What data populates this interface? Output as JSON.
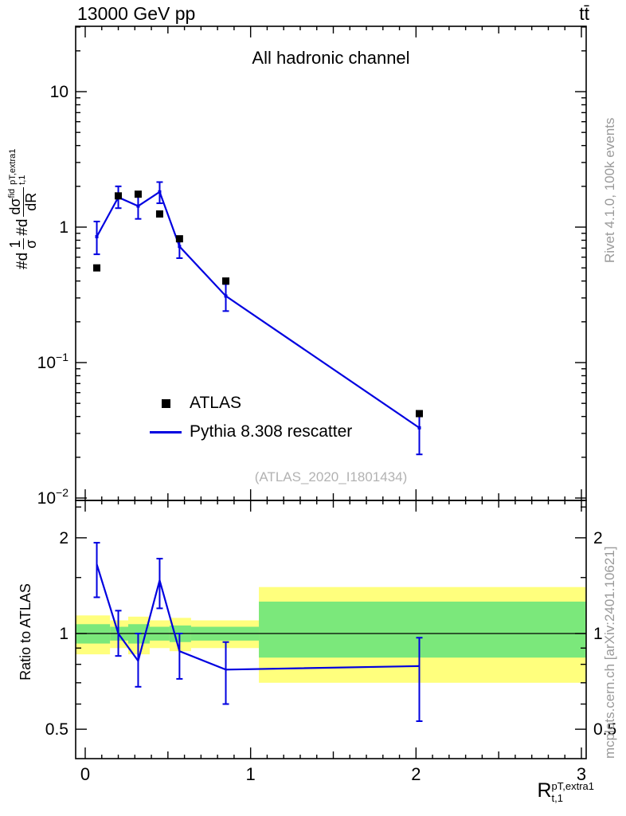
{
  "header": {
    "left": "13000 GeV pp",
    "right": "tt̄"
  },
  "top_panel": {
    "title": "All hadronic channel",
    "watermark": "(ATLAS_2020_I1801434)"
  },
  "legend": [
    {
      "label": "ATLAS",
      "marker": "square",
      "color": "#000000"
    },
    {
      "label": "Pythia 8.308 rescatter",
      "marker": "line",
      "color": "#0000e0"
    }
  ],
  "side_labels": {
    "rivet": "Rivet 4.1.0, 100k events",
    "mcplots": "mcplots.cern.ch [arXiv:2401.10621]"
  },
  "axis_labels": {
    "ratio_y": "Ratio to ATLAS",
    "x_base": "R",
    "x_sup": "pT,extra1",
    "x_sub": "t,1",
    "y_h1": "#d",
    "y_f1_num": "1",
    "y_f1_den": "σ",
    "y_h2": "#d",
    "y_f2_num": "dσ",
    "y_f2_num_sup": "fid",
    "y_f2_den": "dR",
    "y_sup": "pT,extra1",
    "y_sub": "t,1"
  },
  "colors": {
    "pythia": "#0000e0",
    "atlas": "#000000",
    "band_yellow": "#ffff7d",
    "band_green": "#7be87b",
    "frame": "#000000",
    "gray_text": "#9a9a9a"
  },
  "chart_data": {
    "type": "line",
    "title": "All hadronic channel",
    "xlabel": "R_{t,1}^{pT,extra1}",
    "xlim": [
      0,
      3
    ],
    "xticks": [
      0,
      1,
      2,
      3
    ],
    "top": {
      "yscale": "log",
      "ylim": [
        0.0096,
        30
      ],
      "ytick_exponents": [
        1,
        0,
        -1,
        -2
      ],
      "series": [
        {
          "name": "ATLAS",
          "type": "points",
          "marker": "filled-square",
          "color": "#000000",
          "x": [
            0.07,
            0.2,
            0.32,
            0.45,
            0.57,
            0.85,
            2.02
          ],
          "y": [
            0.5,
            1.7,
            1.75,
            1.25,
            0.82,
            0.4,
            0.042
          ]
        },
        {
          "name": "Pythia 8.308 rescatter",
          "type": "line+errorbars",
          "color": "#0000e0",
          "x": [
            0.07,
            0.2,
            0.32,
            0.45,
            0.57,
            0.85,
            2.02
          ],
          "y": [
            0.85,
            1.66,
            1.43,
            1.82,
            0.72,
            0.31,
            0.033
          ],
          "y_lo": [
            0.63,
            1.38,
            1.15,
            1.5,
            0.59,
            0.24,
            0.021
          ],
          "y_hi": [
            1.1,
            2.0,
            1.75,
            2.15,
            0.85,
            0.38,
            0.042
          ]
        }
      ]
    },
    "ratio": {
      "ylabel": "Ratio to ATLAS",
      "yscale": "log",
      "ylim": [
        0.404,
        2.62
      ],
      "yticks": [
        0.5,
        1,
        2
      ],
      "minor_yticks": [
        0.6,
        0.7,
        0.8,
        0.9,
        1.5,
        2.5
      ],
      "reference_line": 1,
      "line": {
        "x": [
          0.07,
          0.2,
          0.32,
          0.45,
          0.57,
          0.85,
          2.02
        ],
        "y": [
          1.65,
          1.0,
          0.82,
          1.47,
          0.88,
          0.77,
          0.79
        ],
        "y_lo": [
          1.3,
          0.85,
          0.68,
          1.2,
          0.72,
          0.6,
          0.53
        ],
        "y_hi": [
          1.93,
          1.18,
          1.0,
          1.72,
          1.0,
          0.94,
          0.97
        ]
      },
      "bands": {
        "yellow": [
          [
            -0.06,
            0.15,
            0.86,
            1.14
          ],
          [
            0.15,
            0.26,
            0.9,
            1.1
          ],
          [
            0.26,
            0.39,
            0.86,
            1.13
          ],
          [
            0.39,
            0.51,
            0.9,
            1.1
          ],
          [
            0.51,
            0.64,
            0.88,
            1.12
          ],
          [
            0.64,
            1.05,
            0.9,
            1.1
          ],
          [
            1.05,
            3.03,
            0.7,
            1.4
          ]
        ],
        "green": [
          [
            -0.06,
            0.15,
            0.93,
            1.07
          ],
          [
            0.15,
            0.26,
            0.95,
            1.05
          ],
          [
            0.26,
            0.39,
            0.93,
            1.07
          ],
          [
            0.39,
            0.51,
            0.95,
            1.05
          ],
          [
            0.51,
            0.64,
            0.94,
            1.06
          ],
          [
            0.64,
            1.05,
            0.95,
            1.05
          ],
          [
            1.05,
            3.03,
            0.84,
            1.26
          ]
        ]
      }
    }
  }
}
